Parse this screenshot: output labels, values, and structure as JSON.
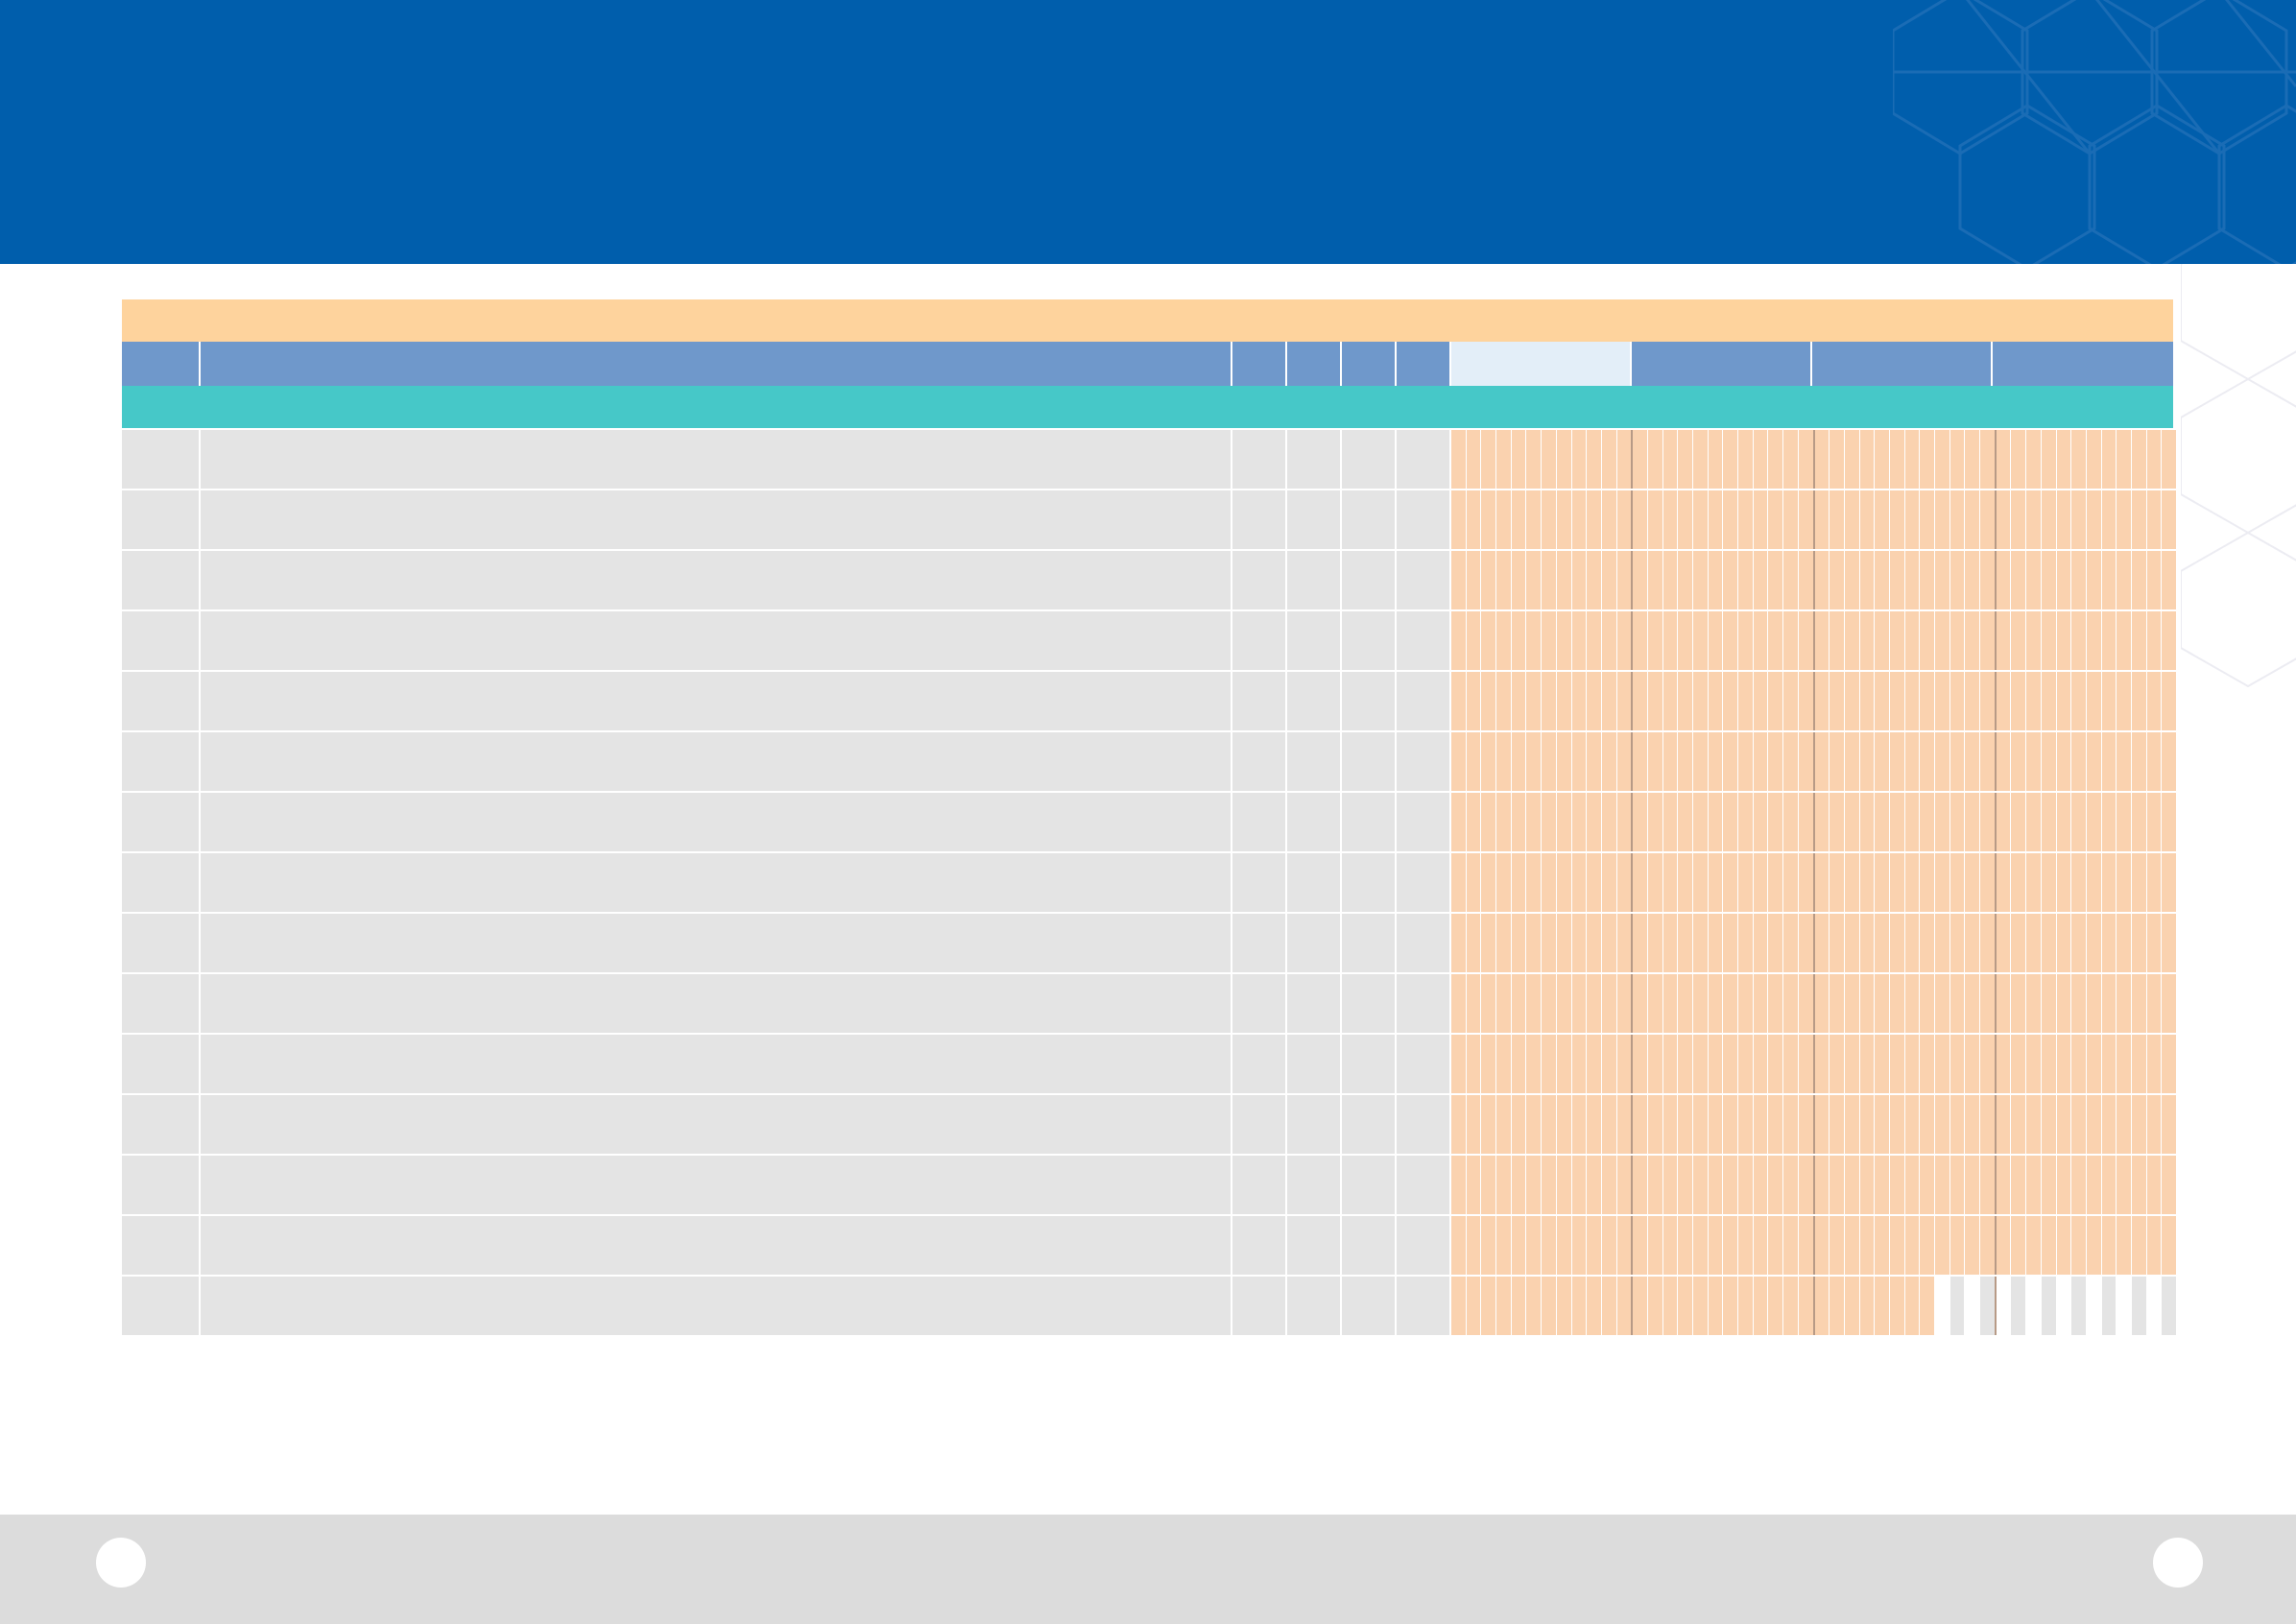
{
  "colors": {
    "header": "#005EAC",
    "footer": "#DCDCDC",
    "title_band": "#FED39D",
    "column_header": "#6F98CB",
    "column_header_current": "#E3EEF8",
    "section_band": "#46C8C8",
    "row": "#E4E4E4",
    "timeline": "#FAD2AF"
  },
  "header": {
    "decoration": "hexagon-pattern"
  },
  "table": {
    "title": "",
    "section": "",
    "columns": [
      "",
      "",
      "",
      "",
      "",
      "",
      "",
      "",
      "",
      ""
    ],
    "current_month_column": 4,
    "rows": [
      {
        "no": "",
        "task": "",
        "c1": "",
        "c2": "",
        "c3": "",
        "c4": "",
        "filled_ticks": 48
      },
      {
        "no": "",
        "task": "",
        "c1": "",
        "c2": "",
        "c3": "",
        "c4": "",
        "filled_ticks": 48
      },
      {
        "no": "",
        "task": "",
        "c1": "",
        "c2": "",
        "c3": "",
        "c4": "",
        "filled_ticks": 48
      },
      {
        "no": "",
        "task": "",
        "c1": "",
        "c2": "",
        "c3": "",
        "c4": "",
        "filled_ticks": 48
      },
      {
        "no": "",
        "task": "",
        "c1": "",
        "c2": "",
        "c3": "",
        "c4": "",
        "filled_ticks": 48
      },
      {
        "no": "",
        "task": "",
        "c1": "",
        "c2": "",
        "c3": "",
        "c4": "",
        "filled_ticks": 48
      },
      {
        "no": "",
        "task": "",
        "c1": "",
        "c2": "",
        "c3": "",
        "c4": "",
        "filled_ticks": 48
      },
      {
        "no": "",
        "task": "",
        "c1": "",
        "c2": "",
        "c3": "",
        "c4": "",
        "filled_ticks": 48
      },
      {
        "no": "",
        "task": "",
        "c1": "",
        "c2": "",
        "c3": "",
        "c4": "",
        "filled_ticks": 48
      },
      {
        "no": "",
        "task": "",
        "c1": "",
        "c2": "",
        "c3": "",
        "c4": "",
        "filled_ticks": 48
      },
      {
        "no": "",
        "task": "",
        "c1": "",
        "c2": "",
        "c3": "",
        "c4": "",
        "filled_ticks": 48
      },
      {
        "no": "",
        "task": "",
        "c1": "",
        "c2": "",
        "c3": "",
        "c4": "",
        "filled_ticks": 48
      },
      {
        "no": "",
        "task": "",
        "c1": "",
        "c2": "",
        "c3": "",
        "c4": "",
        "filled_ticks": 48
      },
      {
        "no": "",
        "task": "",
        "c1": "",
        "c2": "",
        "c3": "",
        "c4": "",
        "filled_ticks": 48
      },
      {
        "no": "",
        "task": "",
        "c1": "",
        "c2": "",
        "c3": "",
        "c4": "",
        "filled_ticks": 32
      }
    ],
    "ticks_per_row": 48,
    "ticks_per_month": 12
  },
  "footer": {
    "left_page": "",
    "right_page": ""
  }
}
